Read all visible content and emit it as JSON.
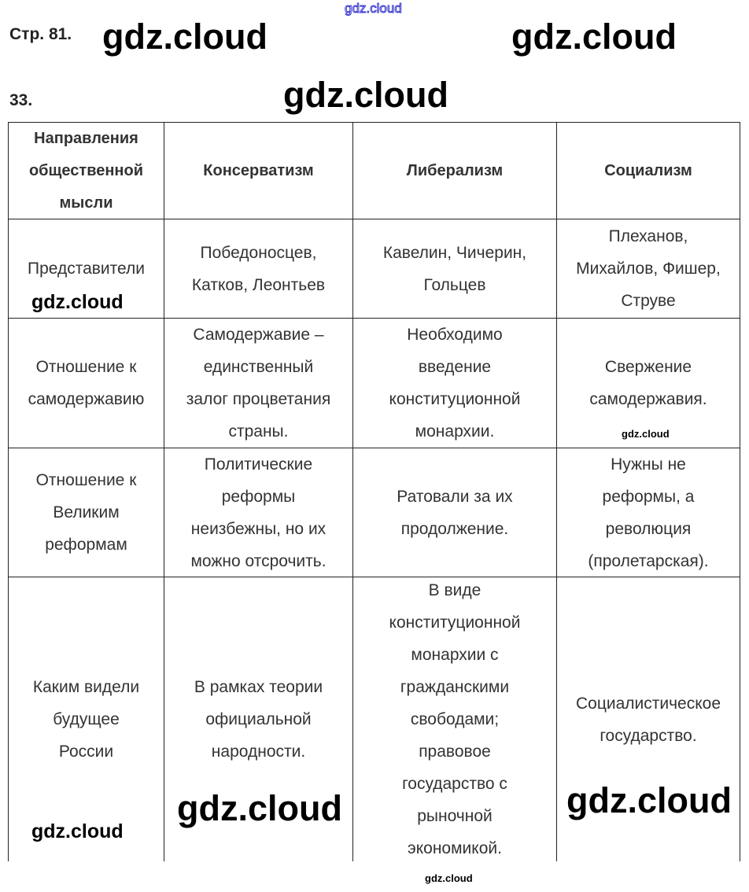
{
  "page_label": "Стр. 81.",
  "task_number": "33.",
  "watermark": "gdz.cloud",
  "table": {
    "headers": [
      "Направления\nобщественной\nмысли",
      "Консерватизм",
      "Либерализм",
      "Социализм"
    ],
    "rows": [
      [
        "Представители",
        "Победоносцев,\nКатков, Леонтьев",
        "Кавелин, Чичерин,\nГольцев",
        "Плеханов,\nМихайлов, Фишер,\nСтруве"
      ],
      [
        "Отношение к\nсамодержавию",
        "Самодержавие –\nединственный\nзалог процветания\nстраны.",
        "Необходимо\nвведение\nконституционной\nмонархии.",
        "Свержение\nсамодержавия."
      ],
      [
        "Отношение к\nВеликим\nреформам",
        "Политические\nреформы\nнеизбежны, но их\nможно отсрочить.",
        "Ратовали за их\nпродолжение.",
        "Нужны не\nреформы, а\nреволюция\n(пролетарская)."
      ],
      [
        "Каким видели\nбудущее\nРоссии",
        "В рамках теории\nофициальной\nнародности.",
        "В виде\nконституционной\nмонархии с\nгражданскими\nсвободами;\nправовое\nгосударство с\nрыночной\nэкономикой.",
        "Социалистическое\nгосударство."
      ]
    ]
  }
}
